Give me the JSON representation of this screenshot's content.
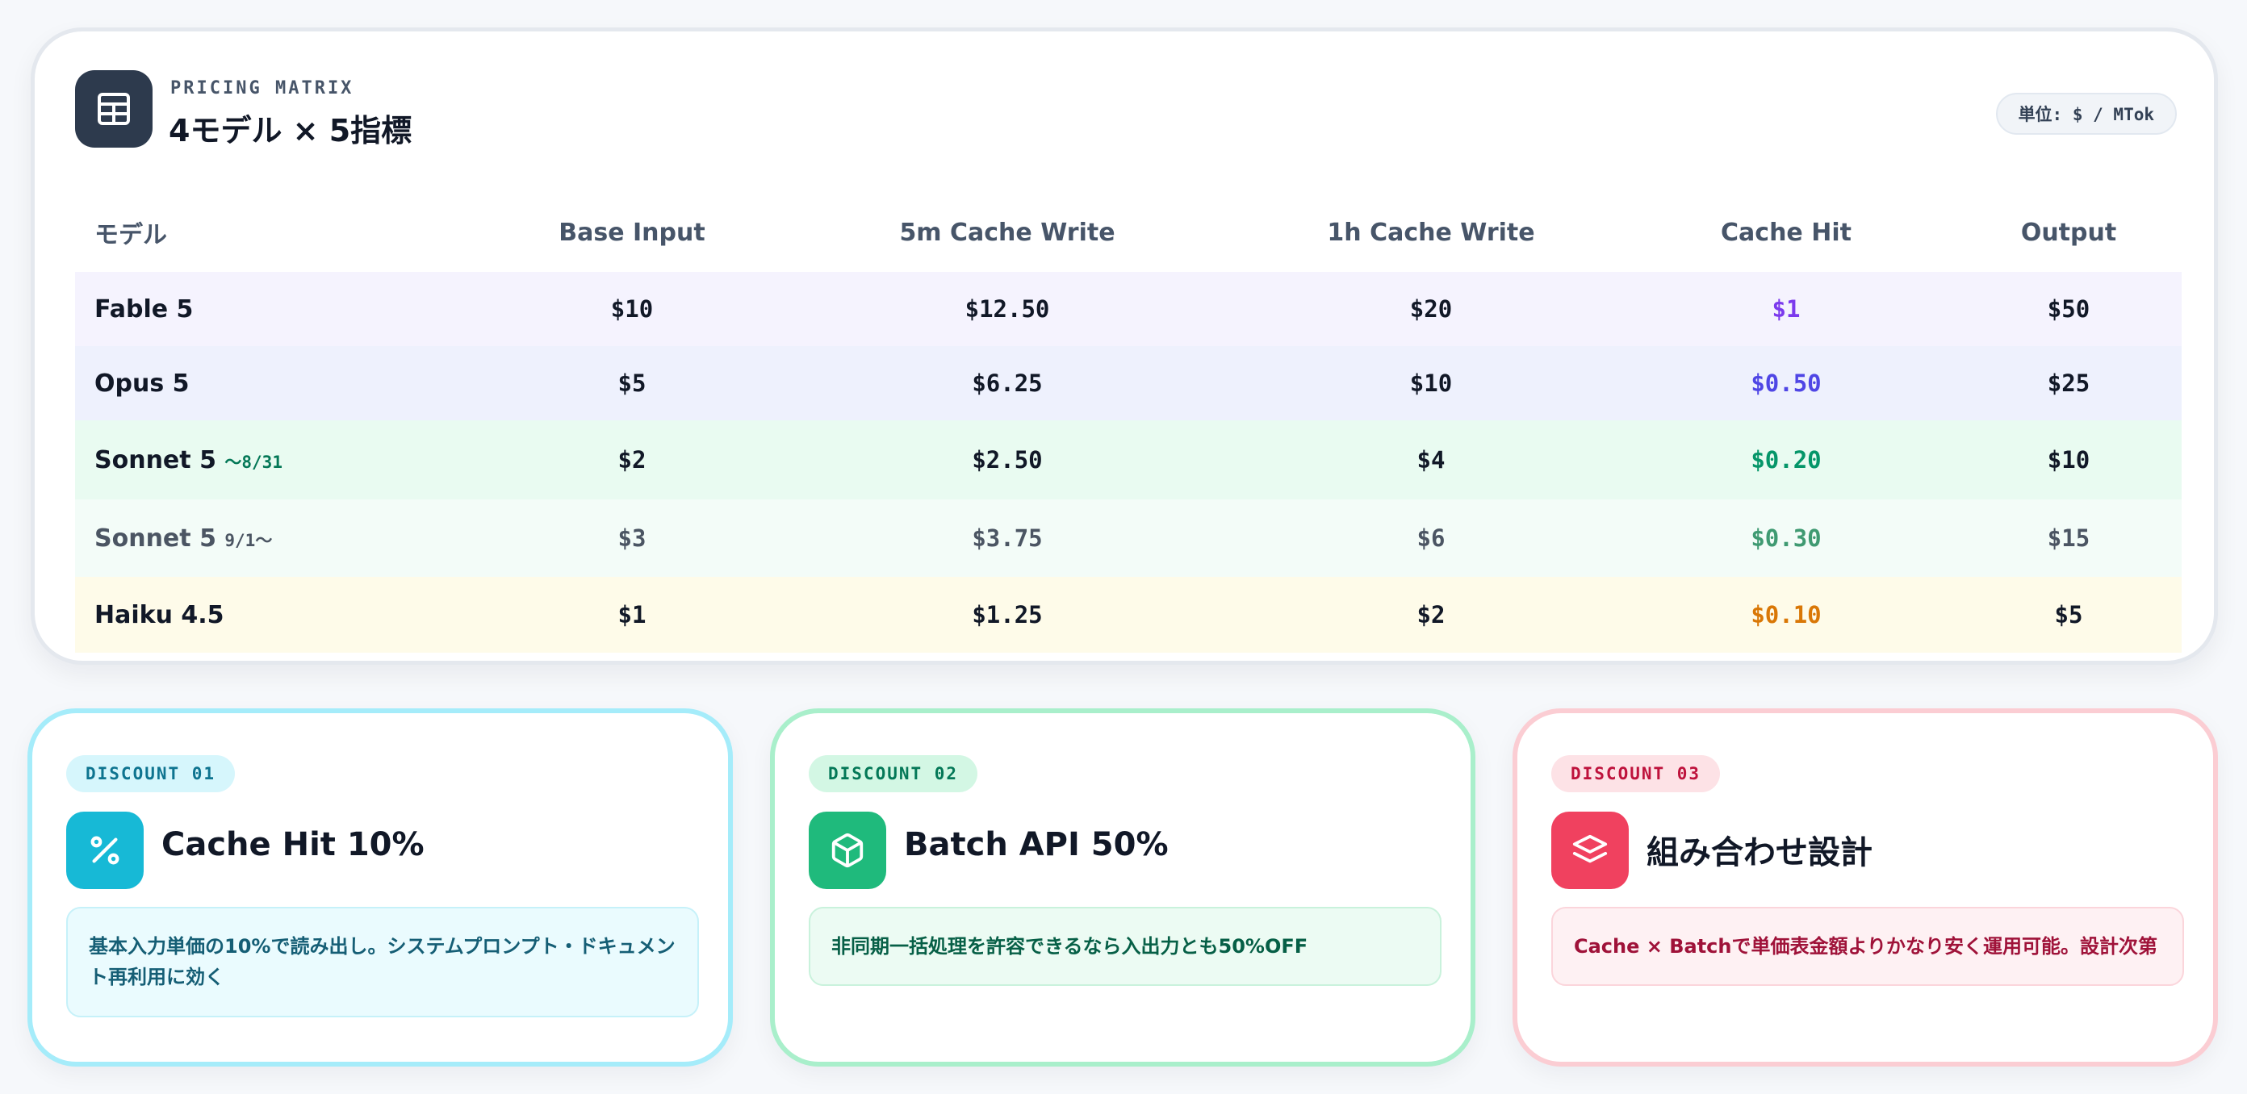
{
  "matrix": {
    "eyebrow": "PRICING MATRIX",
    "title": "4モデル × 5指標",
    "unit": "単位: $ / MTok",
    "icon": "table-icon",
    "columns": [
      "モデル",
      "Base Input",
      "5m Cache Write",
      "1h Cache Write",
      "Cache Hit",
      "Output"
    ],
    "rows": [
      {
        "model": "Fable 5",
        "note": "",
        "values": [
          "$10",
          "$12.50",
          "$20",
          "$1",
          "$50"
        ],
        "hit_color": "#7c3aed"
      },
      {
        "model": "Opus 5",
        "note": "",
        "values": [
          "$5",
          "$6.25",
          "$10",
          "$0.50",
          "$25"
        ],
        "hit_color": "#4f46e5"
      },
      {
        "model": "Sonnet 5",
        "note": "〜8/31",
        "values": [
          "$2",
          "$2.50",
          "$4",
          "$0.20",
          "$10"
        ],
        "hit_color": "#059669",
        "note_color": "#047857"
      },
      {
        "model": "Sonnet 5",
        "note": "9/1〜",
        "values": [
          "$3",
          "$3.75",
          "$6",
          "$0.30",
          "$15"
        ],
        "hit_color": "#3f9a72",
        "note_color": "#4b5563"
      },
      {
        "model": "Haiku 4.5",
        "note": "",
        "values": [
          "$1",
          "$1.25",
          "$2",
          "$0.10",
          "$5"
        ],
        "hit_color": "#d97706"
      }
    ]
  },
  "discounts": [
    {
      "tag": "DISCOUNT 01",
      "title": "Cache Hit 10%",
      "icon": "percent-icon",
      "desc": "基本入力単価の10%で読み出し。システムプロンプト・ドキュメント再利用に効く"
    },
    {
      "tag": "DISCOUNT 02",
      "title": "Batch API 50%",
      "icon": "box-icon",
      "desc": "非同期一括処理を許容できるなら入出力とも50%OFF"
    },
    {
      "tag": "DISCOUNT 03",
      "title": "組み合わせ設計",
      "icon": "layers-icon",
      "desc": "Cache × Batchで単価表金額よりかなり安く運用可能。設計次第"
    }
  ]
}
